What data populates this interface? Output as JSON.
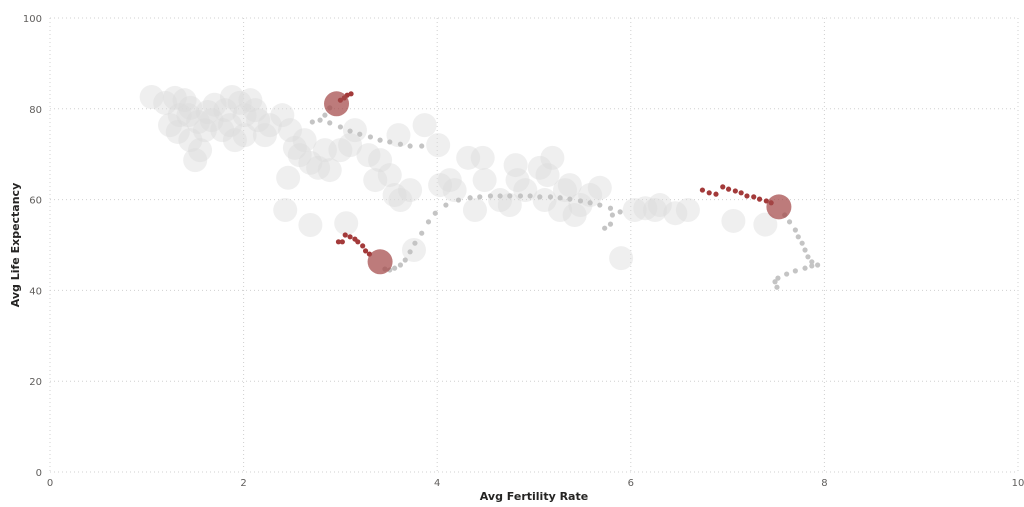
{
  "chart_data": {
    "type": "scatter",
    "xlabel": "Avg Fertility Rate",
    "ylabel": "Avg Life Expectancy",
    "xlim": [
      0,
      10
    ],
    "ylim": [
      0,
      100
    ],
    "xticks": [
      "0",
      "2",
      "4",
      "6",
      "8",
      "10"
    ],
    "yticks": [
      "0",
      "20",
      "40",
      "60",
      "80",
      "100"
    ],
    "grid": true,
    "colors": {
      "bubble": "#dcdcdc",
      "trail": "#c4c4c4",
      "highlight": "#a33a3a",
      "highlight_bubble": "#a34848"
    },
    "points": [
      [
        1.05,
        82.6
      ],
      [
        1.19,
        81.3
      ],
      [
        1.29,
        82.4
      ],
      [
        1.39,
        81.9
      ],
      [
        1.45,
        80.2
      ],
      [
        1.34,
        78.6
      ],
      [
        1.24,
        76.4
      ],
      [
        1.32,
        74.9
      ],
      [
        1.45,
        73.1
      ],
      [
        1.5,
        68.7
      ],
      [
        1.55,
        70.9
      ],
      [
        1.6,
        75.3
      ],
      [
        1.67,
        77.5
      ],
      [
        1.7,
        80.9
      ],
      [
        1.81,
        79.7
      ],
      [
        1.86,
        76.4
      ],
      [
        1.91,
        73.1
      ],
      [
        1.96,
        81.3
      ],
      [
        2.01,
        78.6
      ],
      [
        2.07,
        81.9
      ],
      [
        2.12,
        79.7
      ],
      [
        2.15,
        77.5
      ],
      [
        2.22,
        74.2
      ],
      [
        2.27,
        76.4
      ],
      [
        2.4,
        78.6
      ],
      [
        2.48,
        75.3
      ],
      [
        2.53,
        71.4
      ],
      [
        2.58,
        69.8
      ],
      [
        2.46,
        64.8
      ],
      [
        2.43,
        57.7
      ],
      [
        2.63,
        73.1
      ],
      [
        2.69,
        68.1
      ],
      [
        2.77,
        67.0
      ],
      [
        2.84,
        70.9
      ],
      [
        2.89,
        66.5
      ],
      [
        3.0,
        70.9
      ],
      [
        3.1,
        72.0
      ],
      [
        3.15,
        75.3
      ],
      [
        3.06,
        54.8
      ],
      [
        3.29,
        69.8
      ],
      [
        3.36,
        64.3
      ],
      [
        3.41,
        68.7
      ],
      [
        3.51,
        65.4
      ],
      [
        3.56,
        61.0
      ],
      [
        3.62,
        59.9
      ],
      [
        3.6,
        74.2
      ],
      [
        3.72,
        62.1
      ],
      [
        3.87,
        76.4
      ],
      [
        4.01,
        72.0
      ],
      [
        4.03,
        63.2
      ],
      [
        4.13,
        64.3
      ],
      [
        4.18,
        62.1
      ],
      [
        4.32,
        69.2
      ],
      [
        4.39,
        57.7
      ],
      [
        4.47,
        69.2
      ],
      [
        4.49,
        64.3
      ],
      [
        4.65,
        59.9
      ],
      [
        4.75,
        58.8
      ],
      [
        4.81,
        67.6
      ],
      [
        4.83,
        64.3
      ],
      [
        4.91,
        62.1
      ],
      [
        5.06,
        67.0
      ],
      [
        5.11,
        59.9
      ],
      [
        5.14,
        65.4
      ],
      [
        5.19,
        69.2
      ],
      [
        5.27,
        57.7
      ],
      [
        5.32,
        62.1
      ],
      [
        5.37,
        63.2
      ],
      [
        5.42,
        56.6
      ],
      [
        5.48,
        58.8
      ],
      [
        5.58,
        61.0
      ],
      [
        5.68,
        62.6
      ],
      [
        5.9,
        47.1
      ],
      [
        6.04,
        57.7
      ],
      [
        6.15,
        58.1
      ],
      [
        6.25,
        57.7
      ],
      [
        6.3,
        58.8
      ],
      [
        6.46,
        57.0
      ],
      [
        6.59,
        57.7
      ],
      [
        7.06,
        55.3
      ],
      [
        7.39,
        54.5
      ],
      [
        2.69,
        54.4
      ],
      [
        3.76,
        48.9
      ],
      [
        1.43,
        78.6
      ],
      [
        1.53,
        77.1
      ],
      [
        1.63,
        79.3
      ],
      [
        1.78,
        75.3
      ],
      [
        1.88,
        82.6
      ],
      [
        2.01,
        74.2
      ]
    ],
    "highlighted": [
      {
        "point": [
          2.96,
          81.1
        ],
        "trail_gray": [
          [
            3.84,
            71.8
          ],
          [
            3.72,
            71.8
          ],
          [
            3.62,
            72.2
          ],
          [
            3.51,
            72.7
          ],
          [
            3.41,
            73.1
          ],
          [
            3.31,
            73.8
          ],
          [
            3.2,
            74.4
          ],
          [
            3.1,
            75.1
          ],
          [
            3.0,
            76.0
          ],
          [
            2.89,
            76.9
          ],
          [
            2.79,
            77.5
          ],
          [
            2.71,
            77.1
          ],
          [
            2.84,
            78.6
          ],
          [
            2.89,
            80.2
          ]
        ],
        "trail_red": [
          [
            3.0,
            81.9
          ],
          [
            3.04,
            82.4
          ],
          [
            3.07,
            83.0
          ],
          [
            3.11,
            83.3
          ]
        ]
      },
      {
        "point": [
          3.41,
          46.3
        ],
        "trail_gray": [
          [
            5.73,
            53.7
          ],
          [
            5.79,
            54.6
          ],
          [
            5.81,
            56.6
          ],
          [
            5.89,
            57.3
          ],
          [
            5.79,
            58.1
          ],
          [
            5.68,
            58.8
          ],
          [
            5.58,
            59.3
          ],
          [
            5.48,
            59.7
          ],
          [
            5.37,
            60.1
          ],
          [
            5.27,
            60.4
          ],
          [
            5.17,
            60.6
          ],
          [
            5.06,
            60.6
          ],
          [
            4.96,
            60.8
          ],
          [
            4.86,
            60.8
          ],
          [
            4.75,
            60.8
          ],
          [
            4.65,
            60.8
          ],
          [
            4.55,
            60.8
          ],
          [
            4.44,
            60.6
          ],
          [
            4.34,
            60.4
          ],
          [
            4.22,
            59.9
          ],
          [
            4.09,
            58.8
          ],
          [
            3.98,
            57.0
          ],
          [
            3.91,
            55.1
          ],
          [
            3.84,
            52.6
          ],
          [
            3.77,
            50.4
          ],
          [
            3.72,
            48.5
          ],
          [
            3.67,
            46.7
          ],
          [
            3.62,
            45.6
          ],
          [
            3.56,
            44.9
          ],
          [
            3.51,
            44.5
          ],
          [
            3.46,
            44.7
          ]
        ],
        "trail_red": [
          [
            2.98,
            50.7
          ],
          [
            3.02,
            50.7
          ],
          [
            3.05,
            52.2
          ],
          [
            3.1,
            51.8
          ],
          [
            3.15,
            51.3
          ],
          [
            3.18,
            50.7
          ],
          [
            3.23,
            49.8
          ],
          [
            3.26,
            48.7
          ],
          [
            3.3,
            48.0
          ]
        ]
      },
      {
        "point": [
          7.53,
          58.4
        ],
        "trail_gray": [
          [
            7.51,
            40.7
          ],
          [
            7.49,
            41.9
          ],
          [
            7.52,
            42.7
          ],
          [
            7.61,
            43.6
          ],
          [
            7.7,
            44.3
          ],
          [
            7.8,
            44.9
          ],
          [
            7.87,
            45.4
          ],
          [
            7.93,
            45.6
          ],
          [
            7.87,
            46.3
          ],
          [
            7.83,
            47.4
          ],
          [
            7.8,
            48.9
          ],
          [
            7.77,
            50.4
          ],
          [
            7.73,
            51.8
          ],
          [
            7.7,
            53.3
          ],
          [
            7.64,
            55.1
          ],
          [
            7.59,
            56.6
          ]
        ],
        "trail_red": [
          [
            6.74,
            62.1
          ],
          [
            6.81,
            61.5
          ],
          [
            6.88,
            61.2
          ],
          [
            6.95,
            62.8
          ],
          [
            7.01,
            62.3
          ],
          [
            7.08,
            61.9
          ],
          [
            7.14,
            61.5
          ],
          [
            7.2,
            60.8
          ],
          [
            7.27,
            60.6
          ],
          [
            7.33,
            60.1
          ],
          [
            7.4,
            59.7
          ],
          [
            7.45,
            59.3
          ]
        ]
      }
    ]
  }
}
